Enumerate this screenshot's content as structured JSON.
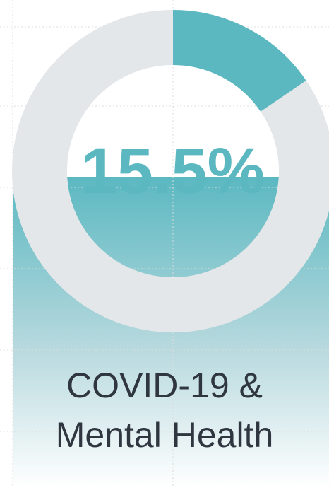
{
  "chart_data": {
    "type": "donut",
    "values": [
      15.5
    ],
    "value_labels": [
      "15.5%"
    ],
    "color": "#5bb8c1",
    "track_color": "#e4e7e9",
    "title": "COVID-19 & Mental Health"
  }
}
